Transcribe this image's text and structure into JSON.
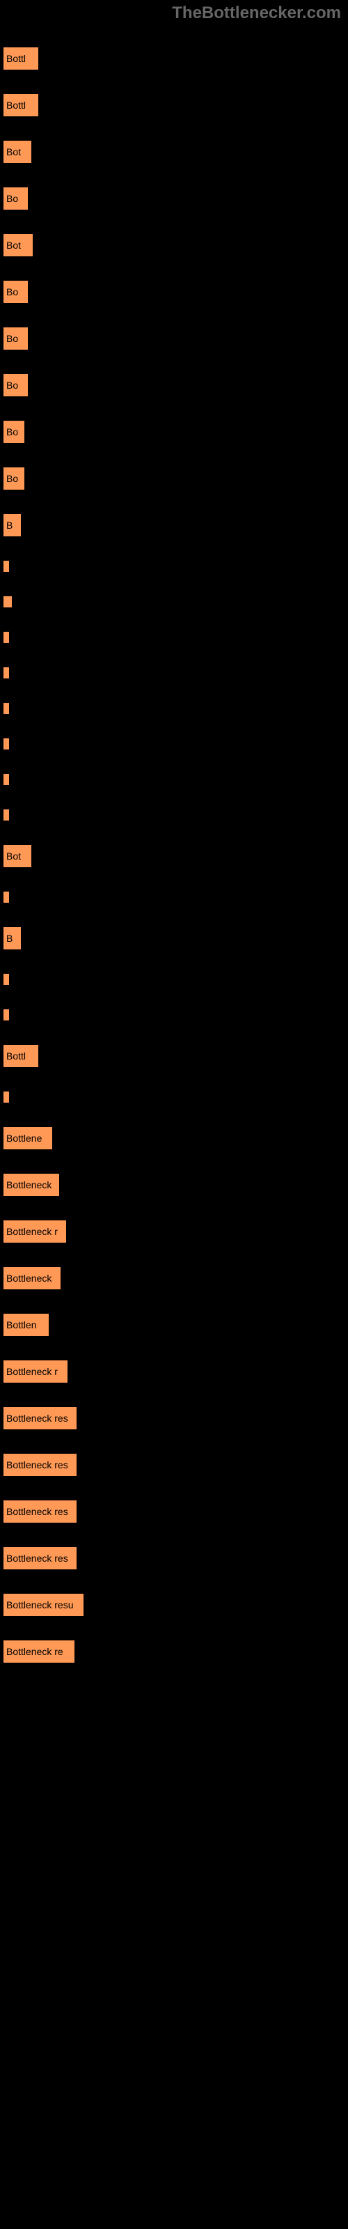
{
  "header": "TheBottlenecker.com",
  "items": [
    {
      "width": 50,
      "label": "Bottl",
      "sublabel": ""
    },
    {
      "width": 50,
      "label": "Bottl",
      "sublabel": ""
    },
    {
      "width": 40,
      "label": "Bot",
      "sublabel": ""
    },
    {
      "width": 35,
      "label": "Bo",
      "sublabel": ""
    },
    {
      "width": 42,
      "label": "Bot",
      "sublabel": ""
    },
    {
      "width": 35,
      "label": "Bo",
      "sublabel": ""
    },
    {
      "width": 35,
      "label": "Bo",
      "sublabel": ""
    },
    {
      "width": 35,
      "label": "Bo",
      "sublabel": ""
    },
    {
      "width": 30,
      "label": "Bo",
      "sublabel": ""
    },
    {
      "width": 30,
      "label": "Bo",
      "sublabel": ""
    },
    {
      "width": 25,
      "label": "B",
      "sublabel": ""
    },
    {
      "width": 4,
      "label": "",
      "sublabel": ""
    },
    {
      "width": 12,
      "label": "",
      "sublabel": ""
    },
    {
      "width": 3,
      "label": "",
      "sublabel": ""
    },
    {
      "width": 3,
      "label": "",
      "sublabel": ""
    },
    {
      "width": 3,
      "label": "",
      "sublabel": ""
    },
    {
      "width": 3,
      "label": "",
      "sublabel": ""
    },
    {
      "width": 3,
      "label": "",
      "sublabel": ""
    },
    {
      "width": 3,
      "label": "",
      "sublabel": ""
    },
    {
      "width": 40,
      "label": "Bot",
      "sublabel": ""
    },
    {
      "width": 3,
      "label": "",
      "sublabel": ""
    },
    {
      "width": 25,
      "label": "B",
      "sublabel": ""
    },
    {
      "width": 3,
      "label": "",
      "sublabel": ""
    },
    {
      "width": 3,
      "label": "",
      "sublabel": ""
    },
    {
      "width": 50,
      "label": "Bottl",
      "sublabel": ""
    },
    {
      "width": 6,
      "label": "",
      "sublabel": ""
    },
    {
      "width": 70,
      "label": "Bottlene",
      "sublabel": ""
    },
    {
      "width": 80,
      "label": "Bottleneck",
      "sublabel": ""
    },
    {
      "width": 90,
      "label": "Bottleneck r",
      "sublabel": ""
    },
    {
      "width": 82,
      "label": "Bottleneck",
      "sublabel": ""
    },
    {
      "width": 65,
      "label": "Bottlen",
      "sublabel": ""
    },
    {
      "width": 92,
      "label": "Bottleneck r",
      "sublabel": ""
    },
    {
      "width": 105,
      "label": "Bottleneck res",
      "sublabel": ""
    },
    {
      "width": 105,
      "label": "Bottleneck res",
      "sublabel": ""
    },
    {
      "width": 105,
      "label": "Bottleneck res",
      "sublabel": ""
    },
    {
      "width": 105,
      "label": "Bottleneck res",
      "sublabel": ""
    },
    {
      "width": 115,
      "label": "Bottleneck resu",
      "sublabel": ""
    },
    {
      "width": 102,
      "label": "Bottleneck re",
      "sublabel": ""
    }
  ],
  "colors": {
    "background": "#000000",
    "bar": "#ff9955",
    "barText": "#000000"
  }
}
